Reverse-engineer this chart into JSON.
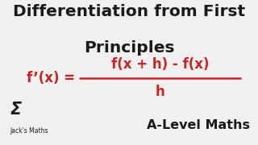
{
  "title_line1": "Differentiation from First",
  "title_line2": "Principles",
  "formula_lhs": "f’(x) =",
  "formula_numerator": "f(x + h) - f(x)",
  "formula_denominator": "h",
  "subtitle": "A-Level Maths",
  "sigma_label": "Jack's Maths",
  "background_color": "#f0f0f0",
  "title_color": "#1a1a1a",
  "formula_color": "#cc2222",
  "subtitle_color": "#1a1a1a",
  "sigma_color": "#1a1a1a",
  "title_fontsize": 14.5,
  "formula_fontsize": 12,
  "subtitle_fontsize": 11.5,
  "sigma_fontsize": 15,
  "sigma_label_fontsize": 5.5
}
